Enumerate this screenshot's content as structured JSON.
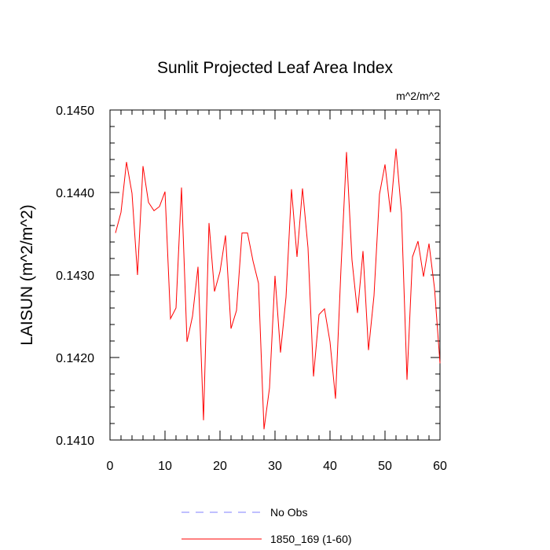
{
  "chart_data": {
    "type": "line",
    "title": "Sunlit Projected Leaf Area Index",
    "units": "m^2/m^2",
    "ylabel": "LAISUN  (m^2/m^2)",
    "xlabel": "",
    "xlim": [
      0,
      60
    ],
    "ylim": [
      0.141,
      0.145
    ],
    "x_ticks": [
      0,
      10,
      20,
      30,
      40,
      50,
      60
    ],
    "x_tick_labels": [
      "0",
      "10",
      "20",
      "30",
      "40",
      "50",
      "60"
    ],
    "y_ticks": [
      0.141,
      0.142,
      0.143,
      0.144,
      0.145
    ],
    "y_tick_labels": [
      "0.1410",
      "0.1420",
      "0.1430",
      "0.1440",
      "0.1450"
    ],
    "grid": false,
    "legend": {
      "placement": "bottom-center"
    },
    "series": [
      {
        "name": "No Obs",
        "color": "#8080ff",
        "dash": "dashed",
        "values": []
      },
      {
        "name": "1850_169 (1-60)",
        "color": "#ff0000",
        "dash": "solid",
        "x": [
          1,
          2,
          3,
          4,
          5,
          6,
          7,
          8,
          9,
          10,
          11,
          12,
          13,
          14,
          15,
          16,
          17,
          18,
          19,
          20,
          21,
          22,
          23,
          24,
          25,
          26,
          27,
          28,
          29,
          30,
          31,
          32,
          33,
          34,
          35,
          36,
          37,
          38,
          39,
          40,
          41,
          42,
          43,
          44,
          45,
          46,
          47,
          48,
          49,
          50,
          51,
          52,
          53,
          54,
          55,
          56,
          57,
          58,
          59,
          60
        ],
        "values": [
          0.14351,
          0.14376,
          0.14437,
          0.14399,
          0.143,
          0.14432,
          0.14388,
          0.14378,
          0.14383,
          0.14401,
          0.14247,
          0.1426,
          0.14406,
          0.14219,
          0.1425,
          0.1431,
          0.14124,
          0.14363,
          0.1428,
          0.14304,
          0.14348,
          0.14235,
          0.14257,
          0.14351,
          0.14351,
          0.14317,
          0.1429,
          0.14113,
          0.14163,
          0.14299,
          0.14206,
          0.14273,
          0.14404,
          0.14322,
          0.14405,
          0.14333,
          0.14177,
          0.14252,
          0.14259,
          0.14219,
          0.1415,
          0.14308,
          0.14449,
          0.14318,
          0.14254,
          0.14329,
          0.14209,
          0.14275,
          0.14398,
          0.14434,
          0.14376,
          0.14453,
          0.14375,
          0.14173,
          0.14322,
          0.14341,
          0.14298,
          0.14338,
          0.14284,
          0.14193
        ]
      }
    ]
  }
}
